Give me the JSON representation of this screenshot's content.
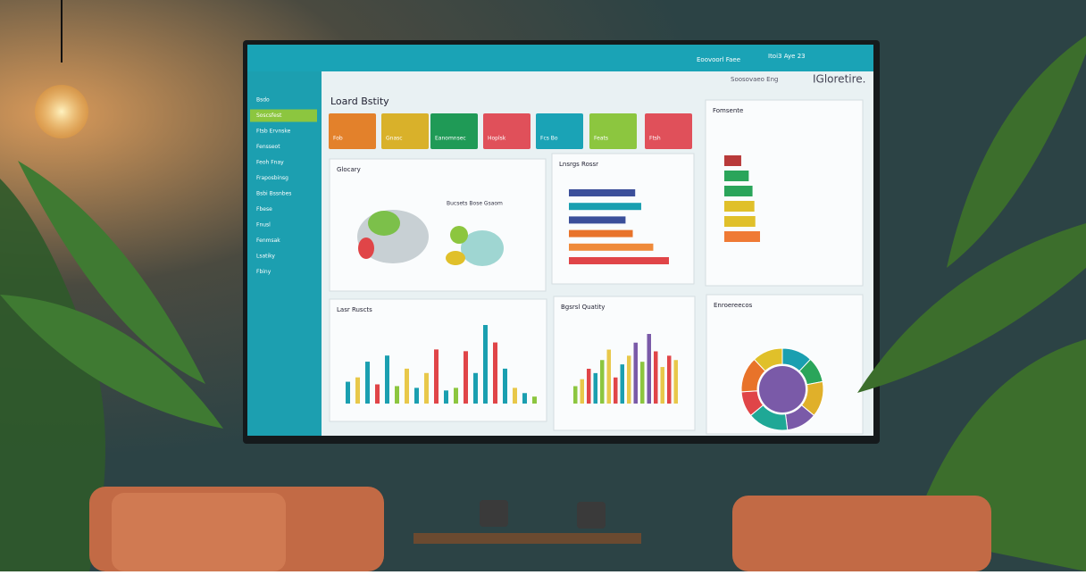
{
  "header": {
    "left": "Eoovoorl Faee",
    "date": "Itoi3 Aye 23",
    "brand": "IGloretire.",
    "sub": "Soosovaeo Eng"
  },
  "sidebar": {
    "items": [
      "Bsdo",
      "Soscsfest",
      "Ftsb Ervnske",
      "Fensseot",
      "Feoh Fnay",
      "Fraposbinsg",
      "Bsbi Bssnbes",
      "Fbese",
      "Fnusl",
      "Fenmsak",
      "Lsatiky",
      "Fbiny"
    ],
    "active": 1
  },
  "title": "Loard Bstity",
  "kpis": [
    {
      "label": "Fob",
      "color": "#e3812b"
    },
    {
      "label": "Gnasc",
      "color": "#d9b12a"
    },
    {
      "label": "Eanomnsec",
      "color": "#1f9a56"
    },
    {
      "label": "Hoplsk",
      "color": "#e0505a"
    },
    {
      "label": "Fcs Bo",
      "color": "#1aa3b6"
    },
    {
      "label": "Feats",
      "color": "#8cc63f"
    },
    {
      "label": "Ftsh",
      "color": "#e0505a"
    }
  ],
  "panels": {
    "map": {
      "title": "Glocary",
      "legend": "Bucsets Bose Gsaom"
    },
    "hbar": {
      "title": "Lnsrgs Rossr",
      "values": [
        55,
        60,
        47,
        53,
        70,
        83
      ],
      "colors": [
        "#3b4f9a",
        "#1a9fb0",
        "#3b4f9a",
        "#e8732a",
        "#ef8a3a",
        "#e04548"
      ]
    },
    "rank": {
      "title": "Fomsente",
      "values": [
        18,
        26,
        30,
        32,
        33,
        38
      ],
      "colors": [
        "#b83a3a",
        "#2aa55a",
        "#2aa55a",
        "#e0c02a",
        "#e0c02a",
        "#ef7a35"
      ]
    },
    "vbar": {
      "title": "Lasr Ruscts",
      "values": [
        25,
        30,
        48,
        22,
        55,
        20,
        40,
        18,
        35,
        62,
        15,
        18,
        60,
        35,
        90,
        70,
        40,
        18,
        12,
        8
      ],
      "colors": [
        "#1a9fb0",
        "#e8c84a",
        "#1a9fb0",
        "#e04548",
        "#1a9fb0",
        "#8cc63f",
        "#e8c84a",
        "#1a9fb0",
        "#e8c84a",
        "#e04548",
        "#1a9fb0",
        "#8cc63f",
        "#e04548",
        "#1a9fb0",
        "#1a9fb0",
        "#e04548",
        "#1a9fb0",
        "#e8c84a",
        "#1a9fb0",
        "#8cc63f"
      ]
    },
    "vbar2": {
      "title": "Bgsrsl Quatity",
      "values": [
        20,
        28,
        40,
        35,
        50,
        62,
        30,
        45,
        55,
        70,
        48,
        80,
        60,
        42,
        55,
        50
      ],
      "colors": [
        "#8cc63f",
        "#e8c84a",
        "#e04548",
        "#1a9fb0",
        "#8cc63f",
        "#e8c84a",
        "#e04548",
        "#1a9fb0",
        "#e8c84a",
        "#7a5aa8",
        "#8cc63f",
        "#7a5aa8",
        "#e04548",
        "#e8c84a",
        "#e04548",
        "#e8c84a"
      ]
    },
    "donut": {
      "title": "Enroereecos",
      "values": [
        12,
        10,
        14,
        12,
        16,
        10,
        14,
        12
      ],
      "colors": [
        "#1a9fb0",
        "#2aa55a",
        "#e0b02a",
        "#7a5aa8",
        "#1fa896",
        "#e04548",
        "#e8732a",
        "#e0c02a"
      ]
    }
  }
}
